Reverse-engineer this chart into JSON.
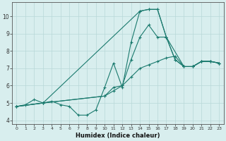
{
  "xlabel": "Humidex (Indice chaleur)",
  "background_color": "#d8eeee",
  "grid_color": "#b8d8d8",
  "line_color": "#1a7a6e",
  "xlim": [
    -0.5,
    23.5
  ],
  "ylim": [
    3.8,
    10.8
  ],
  "xticks": [
    0,
    1,
    2,
    3,
    4,
    5,
    6,
    7,
    8,
    9,
    10,
    11,
    12,
    13,
    14,
    15,
    16,
    17,
    18,
    19,
    20,
    21,
    22,
    23
  ],
  "yticks": [
    4,
    5,
    6,
    7,
    8,
    9,
    10
  ],
  "series": [
    {
      "x": [
        0,
        1,
        2,
        3,
        4,
        5,
        6,
        7,
        8,
        9,
        10,
        11,
        12,
        13,
        14,
        15,
        16,
        17,
        18,
        19,
        20,
        21,
        22,
        23
      ],
      "y": [
        4.8,
        4.9,
        5.2,
        5.0,
        5.1,
        4.9,
        4.8,
        4.3,
        4.3,
        4.6,
        5.9,
        7.3,
        5.9,
        8.5,
        10.3,
        10.4,
        10.4,
        8.8,
        7.5,
        7.1,
        7.1,
        7.4,
        7.4,
        7.3
      ]
    },
    {
      "x": [
        0,
        3,
        14,
        15,
        16,
        17,
        19,
        20,
        21,
        22,
        23
      ],
      "y": [
        4.8,
        5.0,
        10.3,
        10.4,
        10.4,
        8.8,
        7.1,
        7.1,
        7.4,
        7.4,
        7.3
      ]
    },
    {
      "x": [
        0,
        3,
        10,
        11,
        12,
        13,
        14,
        15,
        16,
        17,
        18,
        19,
        20,
        21,
        22,
        23
      ],
      "y": [
        4.8,
        5.0,
        5.4,
        5.9,
        6.0,
        7.5,
        8.8,
        9.5,
        8.8,
        8.8,
        7.5,
        7.1,
        7.1,
        7.4,
        7.4,
        7.3
      ]
    },
    {
      "x": [
        0,
        3,
        10,
        11,
        12,
        13,
        14,
        15,
        16,
        17,
        18,
        19,
        20,
        21,
        22,
        23
      ],
      "y": [
        4.8,
        5.0,
        5.4,
        5.7,
        6.0,
        6.5,
        7.0,
        7.2,
        7.4,
        7.6,
        7.7,
        7.1,
        7.1,
        7.4,
        7.4,
        7.3
      ]
    }
  ]
}
